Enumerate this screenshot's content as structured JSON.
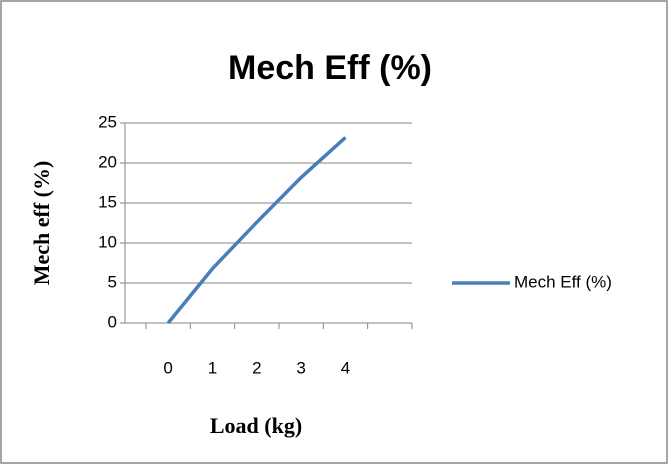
{
  "chart_data": {
    "type": "line",
    "title": "Mech Eff (%)",
    "x_label": "Load (kg)",
    "y_label": "Mech eff (%)",
    "categories": [
      "0",
      "1",
      "2",
      "3",
      "4",
      null
    ],
    "series": [
      {
        "name": "Mech Eff (%)",
        "color": "#4a7ebb",
        "values": [
          0,
          6.8,
          12.6,
          18.2,
          23.2,
          null
        ]
      }
    ],
    "ylim": [
      0,
      25
    ],
    "yticks": [
      0,
      5,
      10,
      15,
      20,
      25
    ],
    "grid": true,
    "legend": "right"
  }
}
